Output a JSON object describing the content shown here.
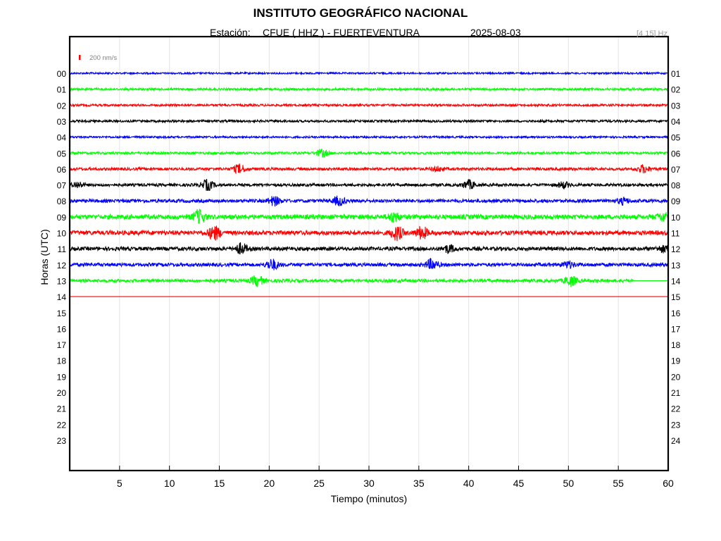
{
  "header": {
    "title": "INSTITUTO GEOGRÁFICO NACIONAL",
    "station_prefix": "Estación:",
    "station": "CFUE ( HHZ ) - FUERTEVENTURA",
    "date": "2025-08-03",
    "band": "[4 15] Hz"
  },
  "chart_data": {
    "type": "line",
    "xlabel": "Tiempo (minutos)",
    "ylabel": "Horas (UTC)",
    "xlim": [
      0,
      60
    ],
    "x_ticks": [
      "5",
      "10",
      "15",
      "20",
      "25",
      "30",
      "35",
      "40",
      "45",
      "50",
      "55",
      "60"
    ],
    "y_ticks_left": [
      "00",
      "01",
      "02",
      "03",
      "04",
      "05",
      "06",
      "07",
      "08",
      "09",
      "10",
      "11",
      "12",
      "13",
      "14",
      "15",
      "16",
      "17",
      "18",
      "19",
      "20",
      "21",
      "22",
      "23"
    ],
    "y_ticks_right": [
      "01",
      "02",
      "03",
      "04",
      "05",
      "06",
      "07",
      "08",
      "09",
      "10",
      "11",
      "12",
      "13",
      "14",
      "15",
      "16",
      "17",
      "18",
      "19",
      "20",
      "21",
      "22",
      "23",
      "24"
    ],
    "scale_label": "200 nm/s",
    "grid": true,
    "series": [
      {
        "hour": "00",
        "color": "#0000ff",
        "noise": 1.2,
        "events": [],
        "end_minute": 60
      },
      {
        "hour": "01",
        "color": "#00ff00",
        "noise": 1.6,
        "events": [],
        "end_minute": 60
      },
      {
        "hour": "02",
        "color": "#ff0000",
        "noise": 1.5,
        "events": [],
        "end_minute": 60
      },
      {
        "hour": "03",
        "color": "#000000",
        "noise": 1.6,
        "events": [],
        "end_minute": 60
      },
      {
        "hour": "04",
        "color": "#0000ff",
        "noise": 1.4,
        "events": [],
        "end_minute": 60
      },
      {
        "hour": "05",
        "color": "#00ff00",
        "noise": 1.6,
        "events": [
          {
            "minute": 25.3,
            "amp": 5
          }
        ],
        "end_minute": 60
      },
      {
        "hour": "06",
        "color": "#ff0000",
        "noise": 1.9,
        "events": [
          {
            "minute": 17,
            "amp": 6
          },
          {
            "minute": 36.8,
            "amp": 3
          },
          {
            "minute": 57.5,
            "amp": 5
          }
        ],
        "end_minute": 60
      },
      {
        "hour": "07",
        "color": "#000000",
        "noise": 2.0,
        "events": [
          {
            "minute": 0.8,
            "amp": 4
          },
          {
            "minute": 13.8,
            "amp": 7
          },
          {
            "minute": 40,
            "amp": 6
          },
          {
            "minute": 49.5,
            "amp": 4
          }
        ],
        "end_minute": 60
      },
      {
        "hour": "08",
        "color": "#0000ff",
        "noise": 2.3,
        "events": [
          {
            "minute": 20.5,
            "amp": 6
          },
          {
            "minute": 27,
            "amp": 6
          },
          {
            "minute": 55.5,
            "amp": 4
          }
        ],
        "end_minute": 60
      },
      {
        "hour": "09",
        "color": "#00ff00",
        "noise": 3.2,
        "events": [
          {
            "minute": 13,
            "amp": 9
          },
          {
            "minute": 32.5,
            "amp": 6
          },
          {
            "minute": 59.5,
            "amp": 5
          }
        ],
        "end_minute": 60
      },
      {
        "hour": "10",
        "color": "#ff0000",
        "noise": 3.0,
        "events": [
          {
            "minute": 14.5,
            "amp": 9
          },
          {
            "minute": 32.8,
            "amp": 9
          },
          {
            "minute": 35.3,
            "amp": 8
          }
        ],
        "end_minute": 60
      },
      {
        "hour": "11",
        "color": "#000000",
        "noise": 2.6,
        "events": [
          {
            "minute": 17.2,
            "amp": 7
          },
          {
            "minute": 38,
            "amp": 5
          },
          {
            "minute": 59.5,
            "amp": 4
          }
        ],
        "end_minute": 60
      },
      {
        "hour": "12",
        "color": "#0000ff",
        "noise": 2.4,
        "events": [
          {
            "minute": 20.3,
            "amp": 7
          },
          {
            "minute": 36.3,
            "amp": 7
          },
          {
            "minute": 50,
            "amp": 4
          }
        ],
        "end_minute": 60
      },
      {
        "hour": "13",
        "color": "#00ff00",
        "noise": 2.2,
        "events": [
          {
            "minute": 18.8,
            "amp": 7
          },
          {
            "minute": 50.2,
            "amp": 7
          }
        ],
        "end_minute": 56.5
      },
      {
        "hour": "14",
        "color": "#ff0000",
        "noise": 0.0,
        "events": [],
        "end_minute": 60
      }
    ]
  }
}
